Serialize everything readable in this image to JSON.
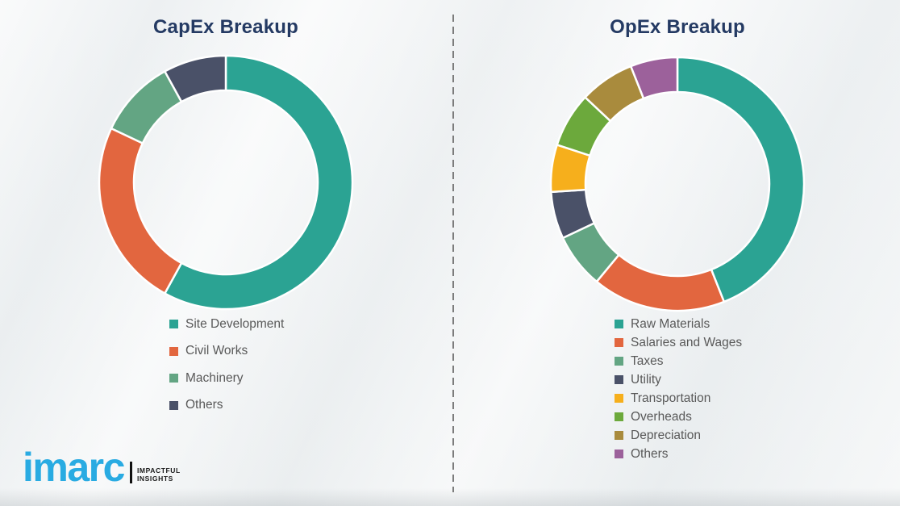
{
  "page": {
    "background_color": "#f1f3f4",
    "divider": {
      "style": "dashed-vertical",
      "color": "#7c7c7c"
    }
  },
  "styles": {
    "title_color": "#243A63",
    "legend_text_color": "#595959"
  },
  "chart_data": [
    {
      "type": "pie",
      "subtype": "donut",
      "title": "CapEx Breakup",
      "categories": [
        "Site Development",
        "Civil Works",
        "Machinery",
        "Others"
      ],
      "values": [
        58,
        24,
        10,
        8
      ],
      "unit": "% (estimated from arc angles, no labels shown)",
      "colors": [
        "#2BA393",
        "#E2663F",
        "#63A583",
        "#4A5168"
      ],
      "start_angle_deg": 0,
      "direction": "clockwise",
      "legend_position": "below-chart-left",
      "data_labels": false
    },
    {
      "type": "pie",
      "subtype": "donut",
      "title": "OpEx Breakup",
      "categories": [
        "Raw Materials",
        "Salaries and Wages",
        "Taxes",
        "Utility",
        "Transportation",
        "Overheads",
        "Depreciation",
        "Others"
      ],
      "values": [
        44,
        17,
        7,
        6,
        6,
        7,
        7,
        6
      ],
      "unit": "% (estimated from arc angles, no labels shown)",
      "colors": [
        "#2BA393",
        "#E2663F",
        "#63A583",
        "#4A5168",
        "#F6AF1C",
        "#6CA93C",
        "#A98B3D",
        "#9C619B"
      ],
      "start_angle_deg": 0,
      "direction": "clockwise",
      "legend_position": "below-chart-left",
      "data_labels": false
    }
  ],
  "branding": {
    "logo_text": "imarc",
    "logo_color": "#29ABE2",
    "tagline_line1": "IMPACTFUL",
    "tagline_line2": "INSIGHTS",
    "tagline_color": "#1a1a1a"
  }
}
